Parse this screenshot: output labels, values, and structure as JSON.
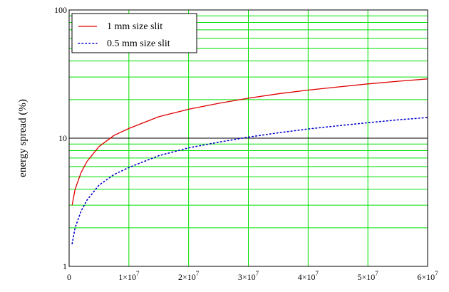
{
  "chart_data": {
    "type": "line",
    "title": "",
    "xlabel": "",
    "ylabel": "energy spread (%)",
    "x_scale": "linear",
    "y_scale": "log",
    "xlim": [
      0,
      60000000
    ],
    "ylim": [
      1,
      100
    ],
    "grid": true,
    "legend_position": "top-left",
    "x_ticks": [
      {
        "value": 0,
        "label": "0"
      },
      {
        "value": 10000000,
        "base": "1×10",
        "exp": "7"
      },
      {
        "value": 20000000,
        "base": "2×10",
        "exp": "7"
      },
      {
        "value": 30000000,
        "base": "3×10",
        "exp": "7"
      },
      {
        "value": 40000000,
        "base": "4×10",
        "exp": "7"
      },
      {
        "value": 50000000,
        "base": "5×10",
        "exp": "7"
      },
      {
        "value": 60000000,
        "base": "6×10",
        "exp": "7"
      }
    ],
    "y_ticks": [
      {
        "value": 1,
        "label": "1"
      },
      {
        "value": 10,
        "label": "10"
      },
      {
        "value": 100,
        "label": "100"
      }
    ],
    "colors": {
      "grid": "#00e000",
      "decade_line": "#000000",
      "series_1": "#e00000",
      "series_2": "#0000cc"
    },
    "series": [
      {
        "name": "1 mm size slit",
        "style": "solid",
        "x": [
          500000,
          1000000,
          2000000,
          3000000,
          5000000,
          7500000,
          10000000,
          15000000,
          20000000,
          25000000,
          30000000,
          35000000,
          40000000,
          45000000,
          50000000,
          55000000,
          60000000
        ],
        "y": [
          3.0,
          4.0,
          5.4,
          6.6,
          8.6,
          10.5,
          11.9,
          14.7,
          16.8,
          18.7,
          20.5,
          22.2,
          23.7,
          25.1,
          26.5,
          27.8,
          29.0
        ]
      },
      {
        "name": "0.5 mm size slit",
        "style": "dotted",
        "x": [
          500000,
          1000000,
          2000000,
          3000000,
          5000000,
          7500000,
          10000000,
          15000000,
          20000000,
          25000000,
          30000000,
          35000000,
          40000000,
          45000000,
          50000000,
          55000000,
          60000000
        ],
        "y": [
          1.5,
          2.0,
          2.7,
          3.3,
          4.3,
          5.2,
          5.9,
          7.3,
          8.4,
          9.3,
          10.2,
          11.0,
          11.8,
          12.5,
          13.2,
          13.9,
          14.5
        ]
      }
    ]
  }
}
